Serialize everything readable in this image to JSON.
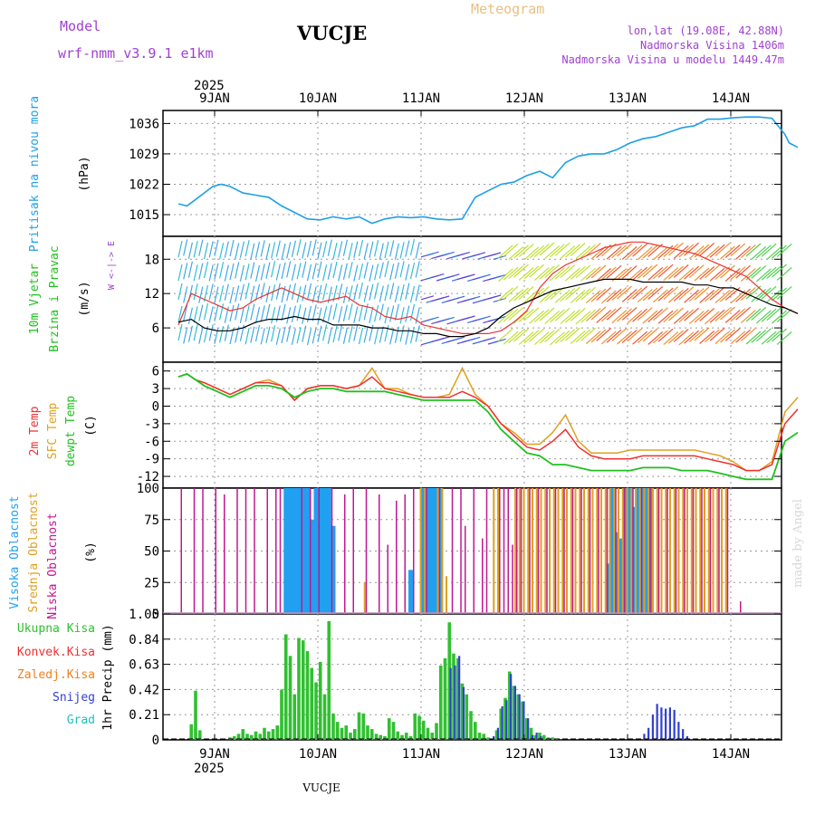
{
  "header": {
    "model_label": "Model",
    "model_name": "wrf-nmm_v3.9.1 e1km",
    "station": "VUCJE",
    "meteogram_label": "Meteogram",
    "lonlat": "lon,lat (19.08E, 42.88N)",
    "elevation": "Nadmorska Visina 1406m",
    "model_elevation": "Nadmorska Visina u modelu 1449.47m",
    "footer_station": "VUCJE",
    "watermark": "made by Angel"
  },
  "colors": {
    "pressure": "#1ea0e6",
    "temp2m": "#f03030",
    "sfc": "#e0a020",
    "dew": "#20c020",
    "high_cloud": "#20a0f0",
    "mid_cloud": "#e0a020",
    "low_cloud": "#c01890",
    "total_precip": "#30c030",
    "conv_precip": "#f03030",
    "freezing": "#f08020",
    "snow": "#3040d0",
    "hail": "#20c0c0",
    "model_text": "#a040d0",
    "meteogram_text": "#e8c080"
  },
  "time_axis": {
    "year": "2025",
    "days": [
      "9JAN",
      "10JAN",
      "11JAN",
      "12JAN",
      "13JAN",
      "14JAN"
    ]
  },
  "chart_data": [
    {
      "type": "line",
      "id": "pressure",
      "ylabel_1": "Pritisak na nivou mora",
      "ylabel_2": "(hPa)",
      "yticks": [
        "1015",
        "1022",
        "1029",
        "1036"
      ],
      "ylim": [
        1010,
        1039
      ],
      "x": [
        0,
        2,
        4,
        6,
        8,
        10,
        12,
        15,
        18,
        21,
        24,
        27,
        30,
        33,
        36,
        39,
        42,
        45,
        48,
        51,
        54,
        57,
        60,
        63,
        66,
        69,
        72,
        75,
        78,
        81,
        84,
        87,
        90,
        93,
        96,
        99,
        102,
        105,
        108,
        111,
        114,
        117,
        120,
        123,
        126,
        129,
        132,
        135,
        138,
        141,
        142,
        144
      ],
      "series": [
        {
          "values": [
            1017.5,
            1017,
            1018.5,
            1020,
            1021.5,
            1022,
            1021.5,
            1020,
            1019.5,
            1019,
            1017,
            1015.5,
            1014,
            1013.8,
            1014.5,
            1014,
            1014.5,
            1013,
            1014,
            1014.5,
            1014.3,
            1014.5,
            1014,
            1013.8,
            1014,
            1019,
            1020.5,
            1022,
            1022.5,
            1024,
            1025,
            1023.5,
            1027,
            1028.5,
            1029,
            1029,
            1030,
            1031.5,
            1032.5,
            1033,
            1034,
            1035,
            1035.5,
            1037,
            1037,
            1037.3,
            1037.5,
            1037.5,
            1037.2,
            1033.5,
            1031.5,
            1030.5
          ]
        }
      ]
    },
    {
      "type": "line",
      "id": "wind",
      "ylabel_1": "10m Vjetar",
      "ylabel_2": "Brzina i Pravac",
      "ylabel_3": "(m/s)",
      "compass": "W <-|-> E",
      "yticks": [
        "6",
        "12",
        "18"
      ],
      "ylim": [
        0,
        22
      ],
      "x": [
        0,
        3,
        6,
        9,
        12,
        15,
        18,
        21,
        24,
        27,
        30,
        33,
        36,
        39,
        42,
        45,
        48,
        51,
        54,
        57,
        60,
        63,
        66,
        69,
        72,
        75,
        78,
        81,
        84,
        87,
        90,
        93,
        96,
        99,
        102,
        105,
        108,
        111,
        114,
        117,
        120,
        123,
        126,
        129,
        132,
        135,
        138,
        141,
        144
      ],
      "series": [
        {
          "name": "speed",
          "values": [
            7,
            7.5,
            6,
            5.5,
            5.5,
            6,
            7,
            7.5,
            7.5,
            8,
            7.5,
            7.5,
            6.5,
            6.5,
            6.5,
            6,
            6,
            5.5,
            5.5,
            5,
            5,
            4.5,
            4.5,
            5,
            6,
            8,
            9.5,
            10.5,
            11.5,
            12.5,
            13,
            13.5,
            14,
            14.5,
            14.5,
            14.5,
            14,
            14,
            14,
            14,
            13.5,
            13.5,
            13,
            13,
            12,
            11,
            10,
            9.5,
            8.5
          ]
        },
        {
          "name": "gust",
          "values": [
            6.5,
            12,
            11,
            10,
            9,
            9.5,
            11,
            12,
            13,
            12,
            11,
            10.5,
            11,
            11.5,
            10,
            9.5,
            8,
            7.5,
            8,
            6.5,
            6,
            5.5,
            5,
            5,
            5,
            5.5,
            7,
            9,
            13,
            15.5,
            17,
            18,
            19,
            20,
            20.5,
            21,
            21,
            20.5,
            20,
            19.5,
            19,
            18,
            17,
            16,
            15,
            13,
            11,
            9.5,
            8.5
          ]
        }
      ]
    },
    {
      "type": "line",
      "id": "temperature",
      "ylabel_1": "2m Temp",
      "ylabel_2": "SFC Temp",
      "ylabel_3": "dewpt Temp",
      "ylabel_4": "(C)",
      "yticks": [
        "6",
        "3",
        "0",
        "-3",
        "-6",
        "-9",
        "-12"
      ],
      "ylim": [
        -14,
        7.5
      ],
      "x": [
        0,
        2,
        4,
        6,
        9,
        12,
        15,
        18,
        21,
        24,
        27,
        30,
        33,
        36,
        39,
        42,
        45,
        48,
        51,
        54,
        57,
        60,
        63,
        66,
        69,
        72,
        75,
        78,
        81,
        84,
        87,
        90,
        93,
        96,
        99,
        102,
        105,
        108,
        111,
        114,
        117,
        120,
        123,
        126,
        129,
        132,
        135,
        138,
        141,
        144
      ],
      "series": [
        {
          "name": "2m Temp",
          "values": [
            5,
            5.5,
            4.5,
            4,
            3,
            2,
            3,
            4,
            4,
            3.5,
            1,
            3,
            3.5,
            3.5,
            3,
            3.5,
            5,
            3,
            2.5,
            2,
            1.5,
            1.5,
            1.5,
            2.5,
            1.5,
            0,
            -3,
            -5,
            -7,
            -7.5,
            -6,
            -4,
            -7,
            -8.5,
            -9,
            -9,
            -9,
            -8.5,
            -8.5,
            -8.5,
            -8.5,
            -8.5,
            -9,
            -9.5,
            -10,
            -11,
            -11,
            -10,
            -3,
            -0.5
          ]
        },
        {
          "name": "SFC Temp",
          "values": [
            5,
            5.5,
            4.5,
            4,
            3,
            2,
            3,
            4,
            4.5,
            3.5,
            1,
            3,
            3.5,
            3.5,
            3,
            3.5,
            6.5,
            3,
            3,
            2,
            1.5,
            1.5,
            2,
            6.5,
            2,
            0,
            -3,
            -4.5,
            -6.5,
            -6.5,
            -4.5,
            -1.5,
            -6,
            -8,
            -8,
            -8,
            -7.5,
            -7.5,
            -7.5,
            -7.5,
            -7.5,
            -7.5,
            -8,
            -8.5,
            -9.5,
            -11,
            -11,
            -9.5,
            -1,
            1.5
          ]
        },
        {
          "name": "dewpt Temp",
          "values": [
            5,
            5.5,
            4.5,
            3.5,
            2.5,
            1.5,
            2.5,
            3.5,
            3.5,
            3,
            1.5,
            2.5,
            3,
            3,
            2.5,
            2.5,
            2.5,
            2.5,
            2,
            1.5,
            1,
            1,
            1,
            1,
            1,
            -1,
            -4,
            -6,
            -8,
            -8.5,
            -10,
            -10,
            -10.5,
            -11,
            -11,
            -11,
            -11,
            -10.5,
            -10.5,
            -10.5,
            -11,
            -11,
            -11,
            -11.5,
            -12,
            -12.5,
            -12.5,
            -12.5,
            -6,
            -4.5
          ]
        }
      ]
    },
    {
      "type": "bar",
      "id": "clouds",
      "ylabel_1": "Visoka Oblacnost",
      "ylabel_2": "Srednja Oblacnost",
      "ylabel_3": "Niska Oblacnost",
      "ylabel_4": "(%)",
      "yticks": [
        "0",
        "25",
        "50",
        "75",
        "100"
      ],
      "ylim": [
        0,
        100
      ],
      "series": [
        {
          "name": "Visoka Oblacnost",
          "x": [
            25,
            26,
            27,
            28,
            29,
            30,
            31,
            32,
            33,
            34,
            35,
            36,
            54,
            57,
            58,
            59,
            60,
            61,
            100,
            101,
            102,
            103,
            104,
            105,
            106,
            107,
            108,
            109,
            110
          ],
          "values": [
            100,
            100,
            100,
            100,
            100,
            100,
            75,
            100,
            100,
            100,
            100,
            70,
            35,
            100,
            100,
            100,
            100,
            100,
            40,
            100,
            65,
            60,
            100,
            100,
            85,
            100,
            100,
            100,
            100
          ]
        },
        {
          "name": "Srednja Oblacnost",
          "x": [
            43,
            56,
            57,
            60,
            61,
            62,
            73,
            74,
            78,
            79,
            80,
            81,
            82,
            83,
            84,
            85,
            86,
            87,
            88,
            89,
            90,
            91,
            92,
            93,
            94,
            95,
            96,
            97,
            98,
            99,
            100,
            101,
            102,
            103,
            104,
            105,
            106,
            107,
            108,
            109,
            110,
            111,
            112,
            113,
            114,
            115,
            116,
            117,
            118,
            119,
            120,
            121,
            122,
            123,
            124,
            125,
            126,
            127
          ],
          "values": [
            25,
            100,
            100,
            100,
            100,
            30,
            100,
            100,
            100,
            100,
            100,
            100,
            100,
            100,
            100,
            100,
            100,
            100,
            100,
            100,
            100,
            100,
            100,
            100,
            100,
            100,
            100,
            100,
            100,
            100,
            100,
            100,
            100,
            100,
            100,
            100,
            100,
            100,
            100,
            100,
            100,
            100,
            100,
            100,
            100,
            100,
            100,
            100,
            100,
            100,
            100,
            100,
            100,
            100,
            100,
            100,
            100,
            100
          ]
        },
        {
          "name": "Niska Oblacnost",
          "x": [
            1,
            4,
            6,
            9,
            11,
            14,
            16,
            18,
            21,
            23,
            24,
            29,
            31,
            33,
            36,
            39,
            41,
            44,
            47,
            49,
            51,
            53,
            55,
            58,
            61,
            64,
            66,
            67,
            69,
            71,
            72,
            75,
            76,
            77,
            78,
            79,
            80,
            82,
            84,
            86,
            88,
            90,
            92,
            94,
            96,
            98,
            100,
            102,
            104,
            106,
            108,
            110,
            112,
            114,
            116,
            118,
            120,
            122,
            124,
            126,
            128,
            131
          ],
          "values": [
            100,
            100,
            100,
            100,
            95,
            100,
            100,
            100,
            100,
            100,
            100,
            100,
            100,
            100,
            100,
            95,
            100,
            100,
            95,
            55,
            90,
            95,
            100,
            100,
            100,
            100,
            100,
            70,
            100,
            60,
            100,
            100,
            100,
            100,
            55,
            100,
            100,
            100,
            100,
            100,
            100,
            100,
            100,
            100,
            100,
            100,
            100,
            100,
            100,
            100,
            100,
            100,
            100,
            100,
            100,
            100,
            100,
            100,
            100,
            100,
            100,
            10
          ]
        }
      ]
    },
    {
      "type": "bar",
      "id": "precip",
      "legend": [
        "Ukupna Kisa",
        "Konvek.Kisa",
        "Zaledj.Kisa",
        "Snijeg",
        "Grad"
      ],
      "ylabel": "1hr Precip (mm)",
      "yticks": [
        "0",
        "0.21",
        "0.42",
        "0.63",
        "0.84",
        "1.05"
      ],
      "ylim": [
        0,
        1.05
      ],
      "series": [
        {
          "name": "Ukupna Kisa",
          "x": [
            3,
            4,
            5,
            12,
            13,
            14,
            15,
            16,
            17,
            18,
            19,
            20,
            21,
            22,
            23,
            24,
            25,
            26,
            27,
            28,
            29,
            30,
            31,
            32,
            33,
            34,
            35,
            36,
            37,
            38,
            39,
            40,
            41,
            42,
            43,
            44,
            45,
            46,
            47,
            48,
            49,
            50,
            51,
            52,
            53,
            54,
            55,
            56,
            57,
            58,
            59,
            60,
            61,
            62,
            63,
            64,
            65,
            66,
            67,
            68,
            69,
            70,
            71,
            72,
            74,
            75,
            76,
            77,
            78,
            79,
            80,
            81,
            82,
            83,
            84,
            85,
            86,
            87,
            88
          ],
          "values": [
            0.13,
            0.41,
            0.08,
            0.02,
            0.03,
            0.05,
            0.09,
            0.05,
            0.04,
            0.07,
            0.05,
            0.1,
            0.07,
            0.09,
            0.12,
            0.42,
            0.88,
            0.7,
            0.38,
            0.85,
            0.83,
            0.74,
            0.6,
            0.48,
            0.65,
            0.38,
            0.99,
            0.22,
            0.15,
            0.1,
            0.12,
            0.06,
            0.09,
            0.23,
            0.22,
            0.12,
            0.09,
            0.05,
            0.04,
            0.03,
            0.18,
            0.15,
            0.07,
            0.04,
            0.06,
            0.03,
            0.22,
            0.2,
            0.16,
            0.1,
            0.06,
            0.14,
            0.62,
            0.68,
            0.98,
            0.72,
            0.68,
            0.47,
            0.38,
            0.24,
            0.15,
            0.06,
            0.05,
            0.02,
            0.08,
            0.26,
            0.35,
            0.57,
            0.45,
            0.38,
            0.32,
            0.18,
            0.1,
            0.04,
            0.06,
            0.04,
            0.02,
            0.02,
            0.01
          ]
        },
        {
          "name": "Snijeg",
          "x": [
            63,
            64,
            65,
            66,
            73,
            74,
            75,
            76,
            77,
            78,
            79,
            80,
            81,
            82,
            83,
            84,
            108,
            109,
            110,
            111,
            112,
            113,
            114,
            115,
            116,
            117,
            118
          ],
          "values": [
            0.6,
            0.62,
            0.7,
            0.44,
            0.03,
            0.1,
            0.28,
            0.33,
            0.55,
            0.45,
            0.38,
            0.32,
            0.18,
            0.04,
            0.06,
            0.03,
            0.05,
            0.1,
            0.21,
            0.3,
            0.27,
            0.26,
            0.27,
            0.25,
            0.15,
            0.09,
            0.03
          ]
        }
      ]
    }
  ]
}
